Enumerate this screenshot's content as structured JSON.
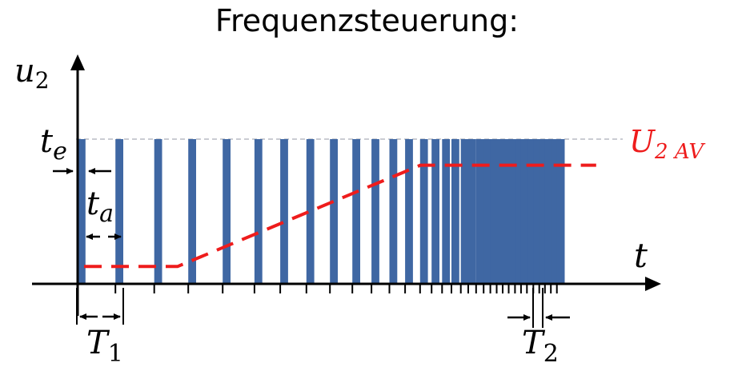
{
  "title": "Frequenzsteuerung:",
  "labels": {
    "y_axis": "u",
    "y_axis_sub": "2",
    "x_axis": "t",
    "t_e_main": "t",
    "t_e_sub": "e",
    "t_a_main": "t",
    "t_a_sub": "a",
    "T1_main": "T",
    "T1_sub": "1",
    "T2_main": "T",
    "T2_sub": "2",
    "avg_main": "U",
    "avg_sub": "2 AV"
  },
  "colors": {
    "pulse": "#3f67a3",
    "average": "#ee1c1c",
    "axis": "#000000",
    "peak_guide": "#b8bcc4"
  },
  "pulse_train": {
    "pulse_width": 1,
    "pulse_starts": [
      0,
      10.1,
      20.5,
      29.6,
      38.8,
      47.3,
      54.2,
      61.2,
      67.5,
      73.5,
      78.6,
      83.4,
      87.6,
      91.6,
      94.7,
      97.5,
      100,
      102.5,
      104.5,
      106.6,
      108.6,
      110.4,
      112.1,
      113.7,
      115.3,
      117.0,
      118.6,
      120.2,
      121.9,
      123.5,
      125.0,
      126.6,
      128.2
    ]
  },
  "average_curve": {
    "points": [
      [
        0,
        0.12
      ],
      [
        25,
        0.12
      ],
      [
        90,
        0.82
      ],
      [
        137,
        0.82
      ]
    ]
  }
}
